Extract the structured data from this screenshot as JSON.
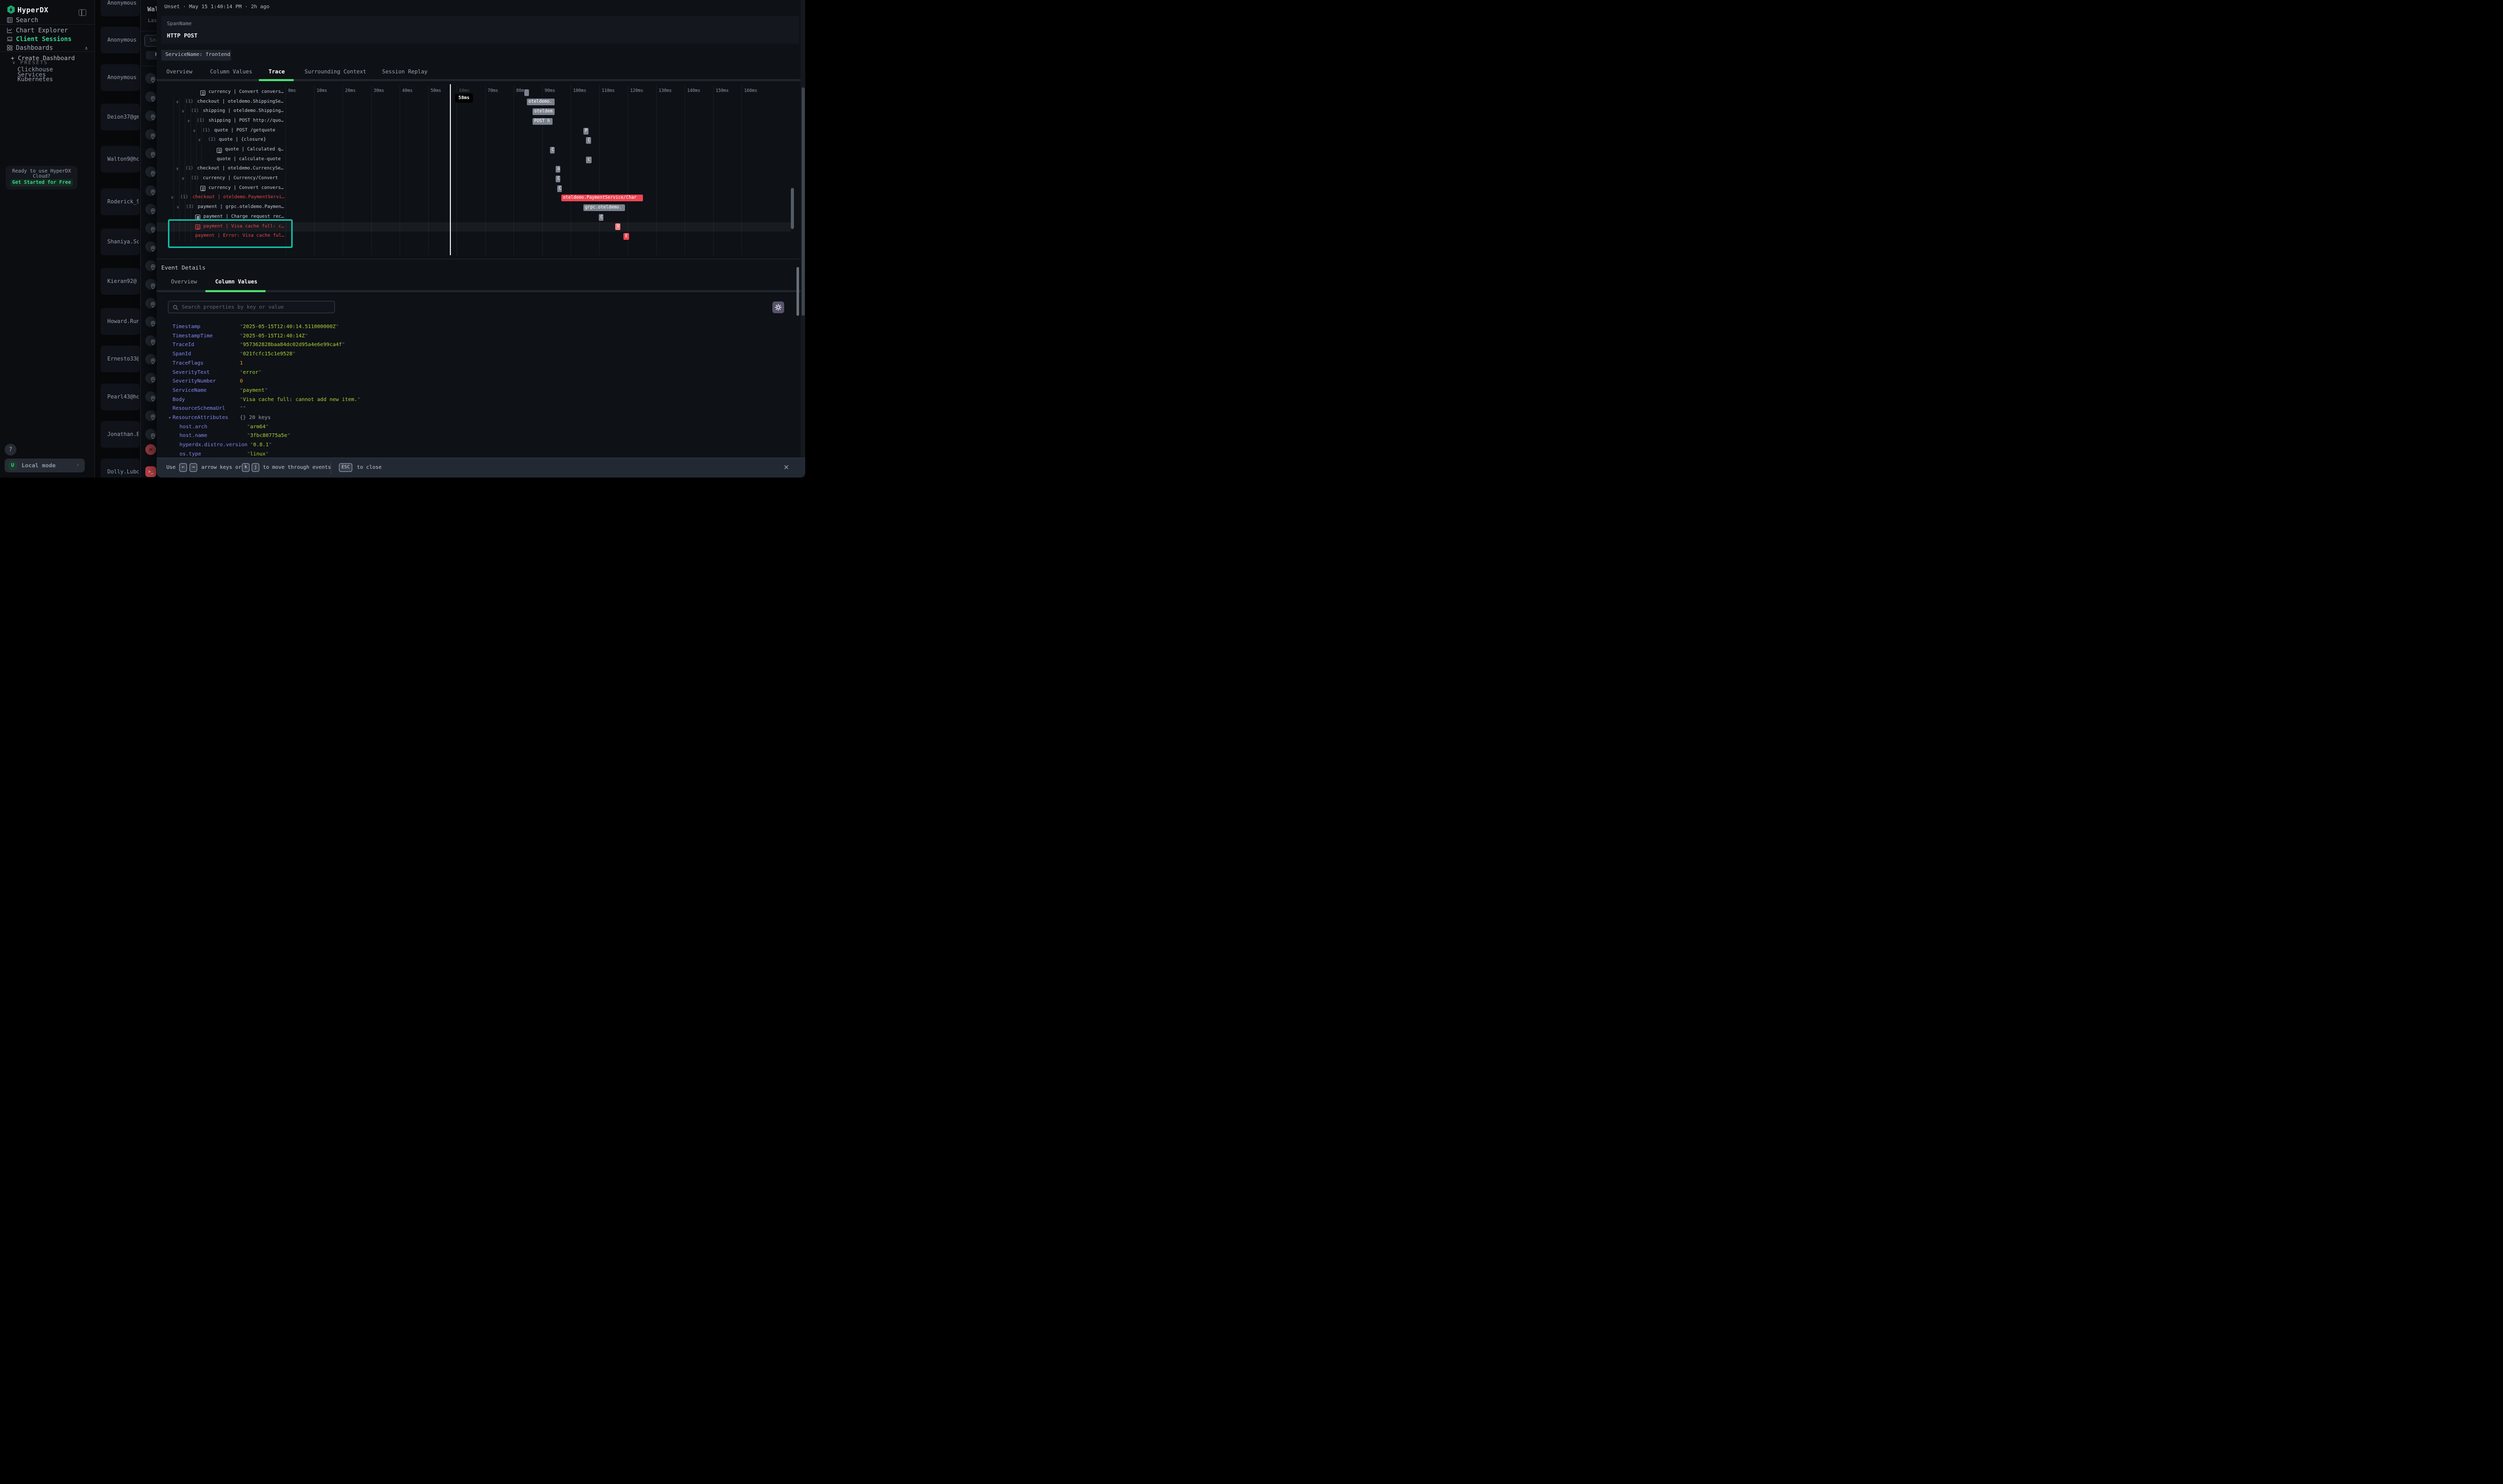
{
  "colors": {
    "accent_green": "#4ade70",
    "brand_green": "#1fa870",
    "active_nav_green": "#3ecf8e",
    "error_red": "#e5484d",
    "bar_gray": "#7b828d",
    "bar_red": "#ee4452",
    "bar_salmon": "#f98289",
    "highlight_teal": "#12b8a5",
    "key_purple": "#8388f2",
    "value_green": "#a9d138",
    "number_orange": "#ed9b2f"
  },
  "sidebar": {
    "brand": "HyperDX",
    "nav": [
      {
        "label": "Search",
        "icon": "search-docs-icon",
        "active": false
      },
      {
        "label": "Chart Explorer",
        "icon": "chart-icon",
        "active": false
      },
      {
        "label": "Client Sessions",
        "icon": "laptop-icon",
        "active": true
      },
      {
        "label": "Dashboards",
        "icon": "grid-icon",
        "active": false,
        "chevron": "∧"
      }
    ],
    "create_dashboard": "+ Create Dashboard",
    "presets_label": "PRESETS",
    "presets_chevron": "∨",
    "presets": [
      "Clickhouse",
      "Services",
      "Kubernetes"
    ],
    "promo": {
      "line1": "Ready to use HyperDX",
      "line2": "Cloud?",
      "cta": "Get Started for Free"
    },
    "help": "?",
    "local_mode": {
      "avatar": "U",
      "label": "Local mode",
      "chevron": "›"
    }
  },
  "sessions": [
    "Anonymous",
    "Anonymous",
    "Anonymous",
    "Deion37@gm",
    "Walton9@ho",
    "Roderick_S",
    "Shaniya.Sc",
    "Kieran92@",
    "Howard.Run",
    "Ernesto33@",
    "Pearl43@ho",
    "Jonathan.B",
    "Dolly.Lubo"
  ],
  "drawer": {
    "title": "Wal",
    "subtitle": "Las",
    "search_placeholder": "Sea",
    "button": "H",
    "pin_count": 20,
    "swap_icon": "⇄",
    "terminal_icon": ">_"
  },
  "modal": {
    "header": "Unset · May 15 1:40:14 PM · 2h ago",
    "span_label": "SpanName",
    "span_value": "HTTP POST",
    "service_chip": "ServiceName: frontend",
    "tabs": [
      "Overview",
      "Column Values",
      "Trace",
      "Surrounding Context",
      "Session Replay"
    ],
    "active_tab": "Trace",
    "trace": {
      "ticks": [
        "0ms",
        "10ms",
        "20ms",
        "30ms",
        "40ms",
        "50ms",
        "60ms",
        "70ms",
        "80ms",
        "90ms",
        "100ms",
        "110ms",
        "120ms",
        "130ms",
        "140ms",
        "150ms",
        "160ms"
      ],
      "cursor": {
        "label": "58ms",
        "ms": 58
      },
      "rows": [
        {
          "marker": "doc",
          "count": "",
          "label": "currency | Convert convers…",
          "error": false,
          "selected": false,
          "bar": {
            "start_ms": 83.8,
            "duration_ms": 1.6,
            "color": "gray",
            "label": ""
          }
        },
        {
          "marker": "chevron",
          "count": "(1)",
          "label": "checkout | oteldemo.ShippingSe…",
          "error": false,
          "selected": false,
          "bar": {
            "start_ms": 84.7,
            "duration_ms": 9.7,
            "color": "gray",
            "label": "oteldemo."
          }
        },
        {
          "marker": "chevron",
          "count": "(1)",
          "label": "shipping | oteldemo.Shipping…",
          "error": false,
          "selected": false,
          "bar": {
            "start_ms": 86.7,
            "duration_ms": 7.7,
            "color": "gray",
            "label": "oteldem"
          }
        },
        {
          "marker": "chevron",
          "count": "(1)",
          "label": "shipping | POST http://quo…",
          "error": false,
          "selected": false,
          "bar": {
            "start_ms": 86.7,
            "duration_ms": 7.0,
            "color": "gray",
            "label": "POST h"
          }
        },
        {
          "marker": "chevron",
          "count": "(1)",
          "label": "quote | POST /getquote",
          "error": false,
          "selected": false,
          "bar": {
            "start_ms": 104.5,
            "duration_ms": 1.8,
            "color": "gray",
            "label": "P"
          }
        },
        {
          "marker": "chevron",
          "count": "(2)",
          "label": "quote | {closure}",
          "error": false,
          "selected": false,
          "bar": {
            "start_ms": 105.4,
            "duration_ms": 1.8,
            "color": "gray",
            "label": "{"
          }
        },
        {
          "marker": "doc",
          "count": "",
          "label": "quote | Calculated q…",
          "error": false,
          "selected": false,
          "bar": {
            "start_ms": 92.8,
            "duration_ms": 1.6,
            "color": "gray",
            "label": "C"
          }
        },
        {
          "marker": "none",
          "count": "",
          "label": "quote | calculate-quote",
          "error": false,
          "selected": false,
          "bar": {
            "start_ms": 105.4,
            "duration_ms": 2.0,
            "color": "gray",
            "label": "c"
          }
        },
        {
          "marker": "chevron",
          "count": "(1)",
          "label": "checkout | oteldemo.CurrencySe…",
          "error": false,
          "selected": false,
          "bar": {
            "start_ms": 94.8,
            "duration_ms": 1.6,
            "color": "gray",
            "label": "o"
          }
        },
        {
          "marker": "chevron",
          "count": "(1)",
          "label": "currency | Currency/Convert",
          "error": false,
          "selected": false,
          "bar": {
            "start_ms": 94.8,
            "duration_ms": 1.6,
            "color": "gray",
            "label": "C"
          }
        },
        {
          "marker": "doc",
          "count": "",
          "label": "currency | Convert convers…",
          "error": false,
          "selected": false,
          "bar": {
            "start_ms": 95.3,
            "duration_ms": 1.6,
            "color": "gray",
            "label": "C"
          }
        },
        {
          "marker": "chevron",
          "count": "(1)",
          "label": "checkout | oteldemo.PaymentServi…",
          "error": true,
          "selected": false,
          "bar": {
            "start_ms": 96.8,
            "duration_ms": 28.6,
            "color": "red",
            "label": "oteldemo.PaymentService/Char"
          }
        },
        {
          "marker": "chevron",
          "count": "(3)",
          "label": "payment | grpc.oteldemo.Paymen…",
          "error": false,
          "selected": false,
          "bar": {
            "start_ms": 104.5,
            "duration_ms": 14.6,
            "color": "gray",
            "label": "grpc.oteldemo."
          }
        },
        {
          "marker": "doc",
          "count": "",
          "label": "payment | Charge request rec…",
          "error": false,
          "selected": false,
          "bar": {
            "start_ms": 109.9,
            "duration_ms": 1.6,
            "color": "gray",
            "label": "C"
          }
        },
        {
          "marker": "doc",
          "count": "",
          "label": "payment | Visa cache full: c…",
          "error": true,
          "selected": true,
          "bar": {
            "start_ms": 115.7,
            "duration_ms": 1.8,
            "color": "salmon",
            "label": "V"
          }
        },
        {
          "marker": "none",
          "count": "",
          "label": "payment | Error: Visa cache ful…",
          "error": true,
          "selected": false,
          "bar": {
            "start_ms": 118.6,
            "duration_ms": 2.0,
            "color": "red",
            "label": "E"
          }
        }
      ]
    },
    "event_details": {
      "title": "Event Details",
      "tabs": [
        "Overview",
        "Column Values"
      ],
      "active_tab": "Column Values",
      "search_placeholder": "Search properties by key or value",
      "properties": [
        {
          "key": "Timestamp",
          "value": "2025-05-15T12:40:14.511000000Z",
          "type": "string",
          "indent": 0,
          "expandable": false
        },
        {
          "key": "TimestampTime",
          "value": "2025-05-15T12:40:14Z",
          "type": "string",
          "indent": 0,
          "expandable": false
        },
        {
          "key": "TraceId",
          "value": "957362828baa84dc02d95a4e6e99ca4f",
          "type": "string",
          "indent": 0,
          "expandable": false
        },
        {
          "key": "SpanId",
          "value": "021fcfc15c1e9528",
          "type": "string",
          "indent": 0,
          "expandable": false
        },
        {
          "key": "TraceFlags",
          "value": "1",
          "type": "number",
          "indent": 0,
          "expandable": false
        },
        {
          "key": "SeverityText",
          "value": "error",
          "type": "string",
          "indent": 0,
          "expandable": false
        },
        {
          "key": "SeverityNumber",
          "value": "0",
          "type": "number",
          "indent": 0,
          "expandable": false
        },
        {
          "key": "ServiceName",
          "value": "payment",
          "type": "string",
          "indent": 0,
          "expandable": false
        },
        {
          "key": "Body",
          "value": "Visa cache full: cannot add new item.",
          "type": "string",
          "indent": 0,
          "expandable": false
        },
        {
          "key": "ResourceSchemaUrl",
          "value": "",
          "type": "string",
          "indent": 0,
          "expandable": false
        },
        {
          "key": "ResourceAttributes",
          "value": "{} 20 keys",
          "type": "meta",
          "indent": 0,
          "expandable": true
        },
        {
          "key": "host.arch",
          "value": "arm64",
          "type": "string",
          "indent": 1,
          "expandable": false
        },
        {
          "key": "host.name",
          "value": "3fbc80775a5e",
          "type": "string",
          "indent": 1,
          "expandable": false
        },
        {
          "key": "hyperdx.distro.version",
          "value": "0.8.1",
          "type": "string",
          "indent": 1,
          "expandable": false
        },
        {
          "key": "os.type",
          "value": "linux",
          "type": "string",
          "indent": 1,
          "expandable": false
        }
      ]
    },
    "footer": {
      "use": "Use",
      "keys_arrows": [
        "←",
        "→"
      ],
      "arrow_text": "arrow keys or",
      "keys_kj": [
        "k",
        "j"
      ],
      "move_text": "to move through events",
      "esc": "ESC",
      "close_text": "to close",
      "close_icon": "×"
    }
  }
}
